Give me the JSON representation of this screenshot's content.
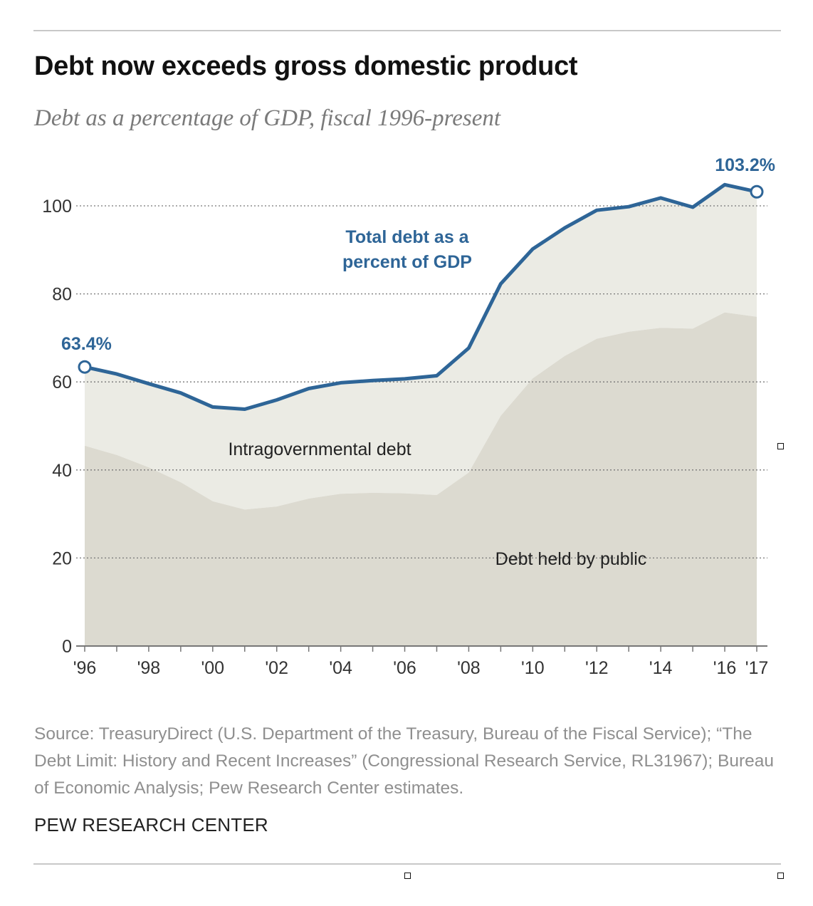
{
  "title": "Debt now exceeds gross domestic product",
  "subtitle": "Debt as a percentage of GDP, fiscal 1996-present",
  "source": "Source: TreasuryDirect (U.S. Department of the Treasury, Bureau of the Fiscal Service); “The Debt Limit: History and Recent Increases” (Congressional Research Service, RL31967); Bureau of Economic Analysis; Pew Research Center estimates.",
  "brand": "PEW RESEARCH CENTER",
  "colors": {
    "total_line": "#2e6597",
    "intragovernmental_area": "#ebebe4",
    "public_area": "#dcdad0"
  },
  "chart_data": {
    "type": "area",
    "x": [
      1996,
      1997,
      1998,
      1999,
      2000,
      2001,
      2002,
      2003,
      2004,
      2005,
      2006,
      2007,
      2008,
      2009,
      2010,
      2011,
      2012,
      2013,
      2014,
      2015,
      2016,
      2017
    ],
    "xtick_values": [
      1996,
      1998,
      2000,
      2002,
      2004,
      2006,
      2008,
      2010,
      2012,
      2014,
      2016,
      2017
    ],
    "xtick_labels": [
      "'96",
      "'98",
      "'00",
      "'02",
      "'04",
      "'06",
      "'08",
      "'10",
      "'12",
      "'14",
      "'16",
      "'17"
    ],
    "yticks": [
      0,
      20,
      40,
      60,
      80,
      100
    ],
    "ylim": [
      0,
      110
    ],
    "grid": true,
    "series": [
      {
        "name": "Total debt as a percent of GDP",
        "style": "line",
        "values": [
          63.4,
          61.8,
          59.6,
          57.5,
          54.3,
          53.8,
          55.9,
          58.5,
          59.8,
          60.3,
          60.7,
          61.4,
          67.7,
          82.3,
          90.2,
          95.0,
          99.0,
          99.8,
          101.8,
          99.7,
          104.8,
          103.2
        ]
      },
      {
        "name": "Debt held by public",
        "style": "area",
        "values": [
          45.5,
          43.4,
          40.6,
          37.2,
          32.9,
          31.0,
          31.7,
          33.5,
          34.6,
          34.8,
          34.7,
          34.3,
          39.4,
          52.3,
          60.8,
          65.9,
          69.8,
          71.4,
          72.3,
          72.1,
          75.8,
          74.8
        ]
      }
    ],
    "area_labels": {
      "upper": "Intragovernmental debt",
      "lower": "Debt held by public"
    },
    "line_label": [
      "Total debt as a",
      "percent of GDP"
    ],
    "annotations": [
      {
        "x": 1996,
        "y": 63.4,
        "text": "63.4%"
      },
      {
        "x": 2017,
        "y": 103.2,
        "text": "103.2%"
      }
    ]
  }
}
